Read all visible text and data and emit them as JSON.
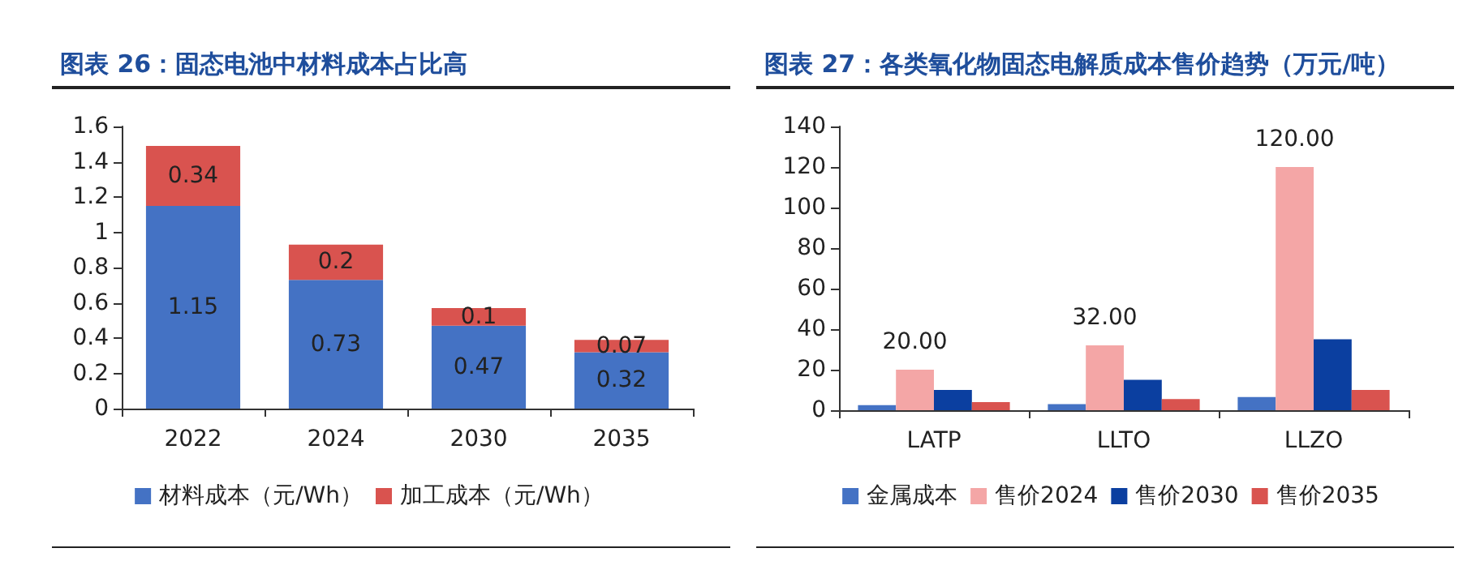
{
  "chart_data": [
    {
      "type": "bar",
      "title": "图表 26：固态电池中材料成本占比高",
      "categories": [
        "2022",
        "2024",
        "2030",
        "2035"
      ],
      "stacked": true,
      "data_labels": true,
      "ylim": [
        0,
        1.6
      ],
      "yticks": [
        0,
        0.2,
        0.4,
        0.6,
        0.8,
        1,
        1.2,
        1.4,
        1.6
      ],
      "grid": false,
      "legend": "bottom",
      "series": [
        {
          "name": "材料成本（元/Wh）",
          "color": "#4472c4",
          "values": [
            1.15,
            0.73,
            0.47,
            0.32
          ]
        },
        {
          "name": "加工成本（元/Wh）",
          "color": "#d9534f",
          "values": [
            0.34,
            0.2,
            0.1,
            0.07
          ]
        }
      ]
    },
    {
      "type": "bar",
      "title": "图表 27：各类氧化物固态电解质成本售价趋势（万元/吨）",
      "categories": [
        "LATP",
        "LLTO",
        "LLZO"
      ],
      "ylim": [
        0,
        140
      ],
      "yticks": [
        0,
        20,
        40,
        60,
        80,
        100,
        120,
        140
      ],
      "grid": false,
      "legend": "bottom",
      "series": [
        {
          "name": "金属成本",
          "color": "#4472c4",
          "values": [
            2.5,
            3,
            6.5
          ]
        },
        {
          "name": "售价2024",
          "color": "#f4a6a6",
          "values": [
            20,
            32,
            120
          ],
          "value_labels": [
            "20.00",
            "32.00",
            "120.00"
          ]
        },
        {
          "name": "售价2030",
          "color": "#0b3fa0",
          "values": [
            10,
            15,
            35
          ]
        },
        {
          "name": "售价2035",
          "color": "#d9534f",
          "values": [
            4,
            5.5,
            10
          ]
        }
      ]
    }
  ]
}
